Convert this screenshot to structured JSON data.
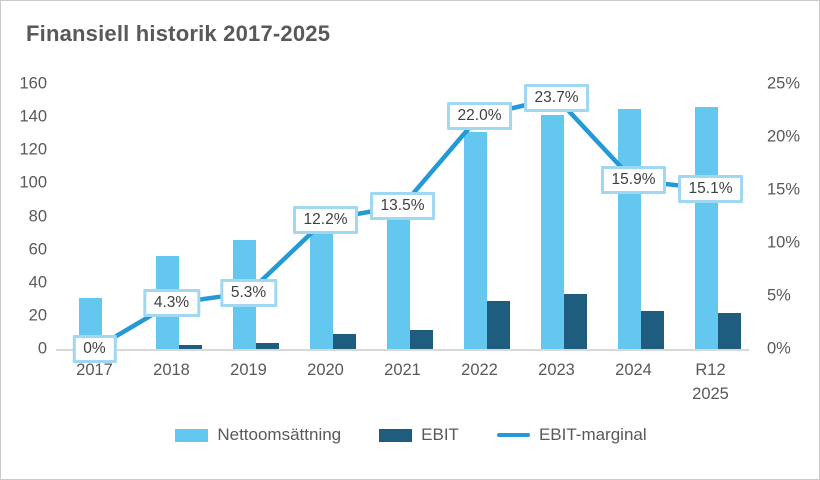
{
  "title": "Finansiell historik 2017-2025",
  "colors": {
    "revenue_bar": "#63c7ef",
    "ebit_bar": "#1e5d7d",
    "margin_line": "#2399d6",
    "point_label_border": "#a0d7f2",
    "point_label_text": "#404040",
    "axis_text": "#595959",
    "axis_line": "#d9d9d9"
  },
  "chart_data": {
    "type": "combo-bar-line",
    "title": "Finansiell historik 2017-2025",
    "categories": [
      "2017",
      "2018",
      "2019",
      "2020",
      "2021",
      "2022",
      "2023",
      "2024",
      "R12 2025"
    ],
    "series": [
      {
        "name": "Nettoomsättning",
        "kind": "bar",
        "axis": "left",
        "color": "#63c7ef",
        "values": [
          31,
          56,
          66,
          72,
          85,
          131,
          141,
          145,
          146
        ]
      },
      {
        "name": "EBIT",
        "kind": "bar",
        "axis": "left",
        "color": "#1e5d7d",
        "values": [
          0,
          2.4,
          3.5,
          8.8,
          11.5,
          28.8,
          33.4,
          23.1,
          22
        ]
      },
      {
        "name": "EBIT-marginal",
        "kind": "line",
        "axis": "right",
        "color": "#2399d6",
        "values": [
          0,
          4.3,
          5.3,
          12.2,
          13.5,
          22.0,
          23.7,
          15.9,
          15.1
        ],
        "point_labels": [
          "0%",
          "4.3%",
          "5.3%",
          "12.2%",
          "13.5%",
          "22.0%",
          "23.7%",
          "15.9%",
          "15.1%"
        ]
      }
    ],
    "left_axis": {
      "ticks": [
        0,
        20,
        40,
        60,
        80,
        100,
        120,
        140,
        160
      ],
      "range": [
        0,
        160
      ]
    },
    "right_axis": {
      "tick_labels": [
        "0%",
        "5%",
        "10%",
        "15%",
        "20%",
        "25%"
      ],
      "tick_values": [
        0,
        5,
        10,
        15,
        20,
        25
      ],
      "range": [
        0,
        25
      ]
    },
    "legend": [
      {
        "label": "Nettoomsättning",
        "swatch": "bar",
        "color": "#63c7ef"
      },
      {
        "label": "EBIT",
        "swatch": "bar",
        "color": "#1e5d7d"
      },
      {
        "label": "EBIT-marginal",
        "swatch": "line",
        "color": "#2399d6"
      }
    ],
    "legend_position": "bottom",
    "grid": false
  }
}
